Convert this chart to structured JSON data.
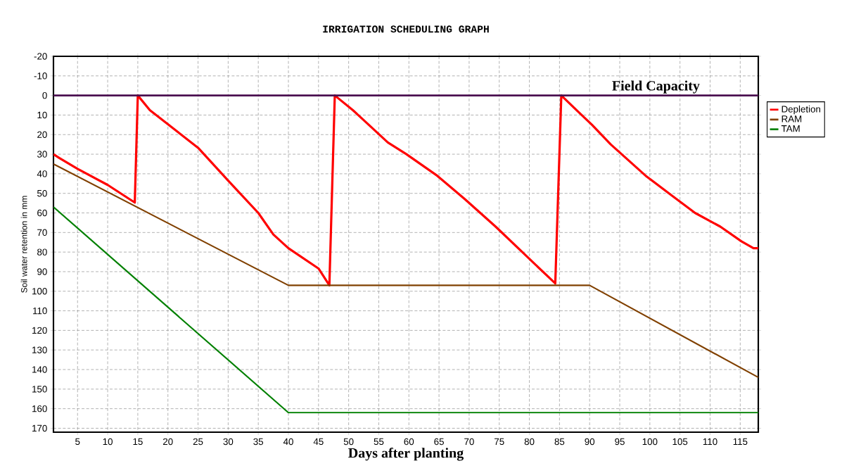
{
  "chart_data": {
    "type": "line",
    "title": "IRRIGATION SCHEDULING GRAPH",
    "xlabel": "Days after planting",
    "ylabel": "Soil water retention in mm",
    "xlim": [
      1,
      118
    ],
    "ylim": [
      172,
      -20
    ],
    "xticks": [
      5,
      10,
      15,
      20,
      25,
      30,
      35,
      40,
      45,
      50,
      55,
      60,
      65,
      70,
      75,
      80,
      85,
      90,
      95,
      100,
      105,
      110,
      115
    ],
    "yticks": [
      -20,
      -10,
      0,
      10,
      20,
      30,
      40,
      50,
      60,
      70,
      80,
      90,
      100,
      110,
      120,
      130,
      140,
      150,
      160,
      170
    ],
    "grid": true,
    "legend": "right",
    "ref_lines": [
      {
        "axis": "y",
        "value": 0,
        "label": "Field Capacity",
        "color": "#4b1050"
      }
    ],
    "series": [
      {
        "name": "Depletion",
        "color": "#ff0000",
        "x": [
          1,
          2,
          5,
          10,
          14.5,
          15,
          17,
          20,
          25,
          30,
          35,
          37.5,
          40,
          45,
          46.8,
          47.7,
          50.7,
          53,
          56.5,
          59.6,
          64.7,
          69.3,
          74.4,
          79.5,
          84.3,
          85.3,
          88,
          90.4,
          93.5,
          99.3,
          103.6,
          107.5,
          111.7,
          115.2,
          117.2,
          118
        ],
        "values": [
          30,
          32,
          37.5,
          45.7,
          54.7,
          0,
          7.5,
          14.7,
          26.7,
          43.5,
          60,
          71,
          78,
          88.4,
          97,
          0,
          7.5,
          14,
          24,
          30,
          41,
          53,
          67,
          82,
          96,
          0,
          8,
          15,
          25,
          41,
          51,
          60,
          67,
          74.5,
          78,
          78
        ]
      },
      {
        "name": "RAM",
        "color": "#804000",
        "x": [
          1,
          40,
          90,
          118
        ],
        "values": [
          35,
          97,
          97,
          144
        ]
      },
      {
        "name": "TAM",
        "color": "#008000",
        "x": [
          1,
          40,
          118
        ],
        "values": [
          57,
          162,
          162
        ]
      }
    ]
  }
}
